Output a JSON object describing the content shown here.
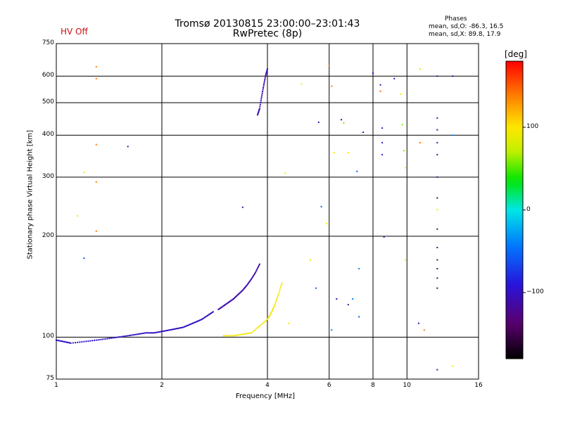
{
  "header": {
    "title": "Tromsø 20130815 23:00:00–23:01:43",
    "subtitle": "RwPretec (8p)",
    "hv_status": "HV Off",
    "hv_color": "#d01010"
  },
  "phases_box": {
    "title": "Phases",
    "line_o": "mean, sd,O: -86.3, 16.5",
    "line_x": "mean, sd,X: 89.8, 17.9"
  },
  "colorbar": {
    "label": "[deg]",
    "range": [
      -180,
      180
    ],
    "ticks": [
      "100",
      "0",
      "−100"
    ],
    "tick_values": [
      100,
      0,
      -100
    ]
  },
  "chart_data": {
    "type": "scatter",
    "xlabel": "Frequency [MHz]",
    "ylabel": "Stationary phase Virtual Height [km]",
    "xscale": "log",
    "yscale": "log",
    "xlim": [
      1,
      16
    ],
    "ylim": [
      75,
      750
    ],
    "xticks": [
      1,
      2,
      4,
      6,
      8,
      10,
      16
    ],
    "xtick_labels": [
      "1",
      "2",
      "4",
      "6",
      "8",
      "10",
      "16"
    ],
    "yticks": [
      75,
      100,
      200,
      300,
      400,
      500,
      600,
      750
    ],
    "ytick_labels": [
      "75",
      "100",
      "200",
      "300",
      "400",
      "500",
      "600",
      "750"
    ],
    "grid": true,
    "series": [
      {
        "traces": [
          {
            "x": [
              1.0,
              1.05,
              1.1,
              1.2,
              1.3,
              1.4,
              1.5,
              1.6,
              1.7,
              1.8,
              1.9,
              2.0,
              2.1,
              2.2,
              2.3,
              2.4,
              2.5,
              2.6,
              2.7,
              2.8
            ],
            "y": [
              98,
              97,
              96,
              97,
              98,
              99,
              100,
              101,
              102,
              103,
              103,
              104,
              105,
              106,
              107,
              109,
              111,
              113,
              116,
              119
            ],
            "phase": -100
          },
          {
            "x": [
              2.9,
              3.0,
              3.1,
              3.2,
              3.3,
              3.4,
              3.5,
              3.6,
              3.7,
              3.8
            ],
            "y": [
              121,
              124,
              127,
              130,
              134,
              138,
              143,
              149,
              156,
              165
            ],
            "phase": -110
          },
          {
            "x": [
              3.75,
              3.8,
              3.85,
              3.9,
              3.95,
              4.0
            ],
            "y": [
              460,
              480,
              520,
              560,
              600,
              630
            ],
            "phase": -110
          },
          {
            "x": [
              3.0,
              3.2,
              3.4,
              3.6,
              3.8,
              4.0,
              4.1,
              4.2,
              4.3,
              4.4
            ],
            "y": [
              101,
              101,
              102,
              103,
              108,
              113,
              118,
              125,
              134,
              145
            ],
            "phase": 95
          }
        ]
      }
    ],
    "isolated_points": [
      {
        "x": 1.3,
        "y": 640,
        "phase": 140
      },
      {
        "x": 1.3,
        "y": 590,
        "phase": 140
      },
      {
        "x": 1.3,
        "y": 375,
        "phase": 140
      },
      {
        "x": 1.3,
        "y": 290,
        "phase": 140
      },
      {
        "x": 1.3,
        "y": 207,
        "phase": 140
      },
      {
        "x": 1.15,
        "y": 230,
        "phase": 95
      },
      {
        "x": 1.2,
        "y": 310,
        "phase": 95
      },
      {
        "x": 1.6,
        "y": 370,
        "phase": -110
      },
      {
        "x": 1.2,
        "y": 172,
        "phase": -60
      },
      {
        "x": 3.4,
        "y": 244,
        "phase": -110
      },
      {
        "x": 4.5,
        "y": 308,
        "phase": 95
      },
      {
        "x": 5.0,
        "y": 568,
        "phase": 95
      },
      {
        "x": 5.6,
        "y": 437,
        "phase": -110
      },
      {
        "x": 5.7,
        "y": 245,
        "phase": -60
      },
      {
        "x": 5.9,
        "y": 218,
        "phase": 95
      },
      {
        "x": 6.0,
        "y": 645,
        "phase": 140
      },
      {
        "x": 6.1,
        "y": 560,
        "phase": 140
      },
      {
        "x": 6.2,
        "y": 355,
        "phase": 95
      },
      {
        "x": 6.5,
        "y": 445,
        "phase": -110
      },
      {
        "x": 6.6,
        "y": 435,
        "phase": 60
      },
      {
        "x": 6.8,
        "y": 355,
        "phase": 95
      },
      {
        "x": 7.2,
        "y": 312,
        "phase": -60
      },
      {
        "x": 7.5,
        "y": 408,
        "phase": -110
      },
      {
        "x": 8.0,
        "y": 612,
        "phase": -100
      },
      {
        "x": 8.4,
        "y": 565,
        "phase": -110
      },
      {
        "x": 8.4,
        "y": 541,
        "phase": 150
      },
      {
        "x": 8.5,
        "y": 420,
        "phase": -110
      },
      {
        "x": 8.5,
        "y": 380,
        "phase": -110
      },
      {
        "x": 8.5,
        "y": 350,
        "phase": -100
      },
      {
        "x": 8.6,
        "y": 199,
        "phase": -110
      },
      {
        "x": 9.2,
        "y": 590,
        "phase": -110
      },
      {
        "x": 9.6,
        "y": 530,
        "phase": 95
      },
      {
        "x": 9.7,
        "y": 430,
        "phase": 60
      },
      {
        "x": 9.8,
        "y": 360,
        "phase": 60
      },
      {
        "x": 9.9,
        "y": 320,
        "phase": 95
      },
      {
        "x": 10.9,
        "y": 630,
        "phase": 95
      },
      {
        "x": 10.9,
        "y": 380,
        "phase": 140
      },
      {
        "x": 12.2,
        "y": 450,
        "phase": -110
      },
      {
        "x": 12.2,
        "y": 415,
        "phase": -110
      },
      {
        "x": 12.2,
        "y": 380,
        "phase": -110
      },
      {
        "x": 12.2,
        "y": 350,
        "phase": -110
      },
      {
        "x": 12.2,
        "y": 300,
        "phase": -110
      },
      {
        "x": 12.2,
        "y": 260,
        "phase": -140
      },
      {
        "x": 12.2,
        "y": 240,
        "phase": 95
      },
      {
        "x": 12.2,
        "y": 210,
        "phase": -140
      },
      {
        "x": 12.2,
        "y": 185,
        "phase": -140
      },
      {
        "x": 12.2,
        "y": 170,
        "phase": -140
      },
      {
        "x": 12.2,
        "y": 160,
        "phase": -140
      },
      {
        "x": 12.2,
        "y": 150,
        "phase": -140
      },
      {
        "x": 12.2,
        "y": 140,
        "phase": -140
      },
      {
        "x": 12.2,
        "y": 600,
        "phase": -110
      },
      {
        "x": 12.2,
        "y": 80,
        "phase": -110
      },
      {
        "x": 13.5,
        "y": 600,
        "phase": -110
      },
      {
        "x": 13.5,
        "y": 400,
        "phase": -40
      },
      {
        "x": 13.5,
        "y": 82,
        "phase": 95
      },
      {
        "x": 5.3,
        "y": 170,
        "phase": 95
      },
      {
        "x": 5.5,
        "y": 140,
        "phase": -60
      },
      {
        "x": 6.1,
        "y": 105,
        "phase": -40
      },
      {
        "x": 6.3,
        "y": 130,
        "phase": -110
      },
      {
        "x": 6.8,
        "y": 125,
        "phase": -110
      },
      {
        "x": 7.0,
        "y": 130,
        "phase": -40
      },
      {
        "x": 7.3,
        "y": 115,
        "phase": -60
      },
      {
        "x": 7.3,
        "y": 160,
        "phase": -40
      },
      {
        "x": 4.6,
        "y": 110,
        "phase": 95
      },
      {
        "x": 9.9,
        "y": 170,
        "phase": 95
      },
      {
        "x": 10.8,
        "y": 110,
        "phase": -110
      },
      {
        "x": 11.2,
        "y": 105,
        "phase": 140
      }
    ]
  }
}
